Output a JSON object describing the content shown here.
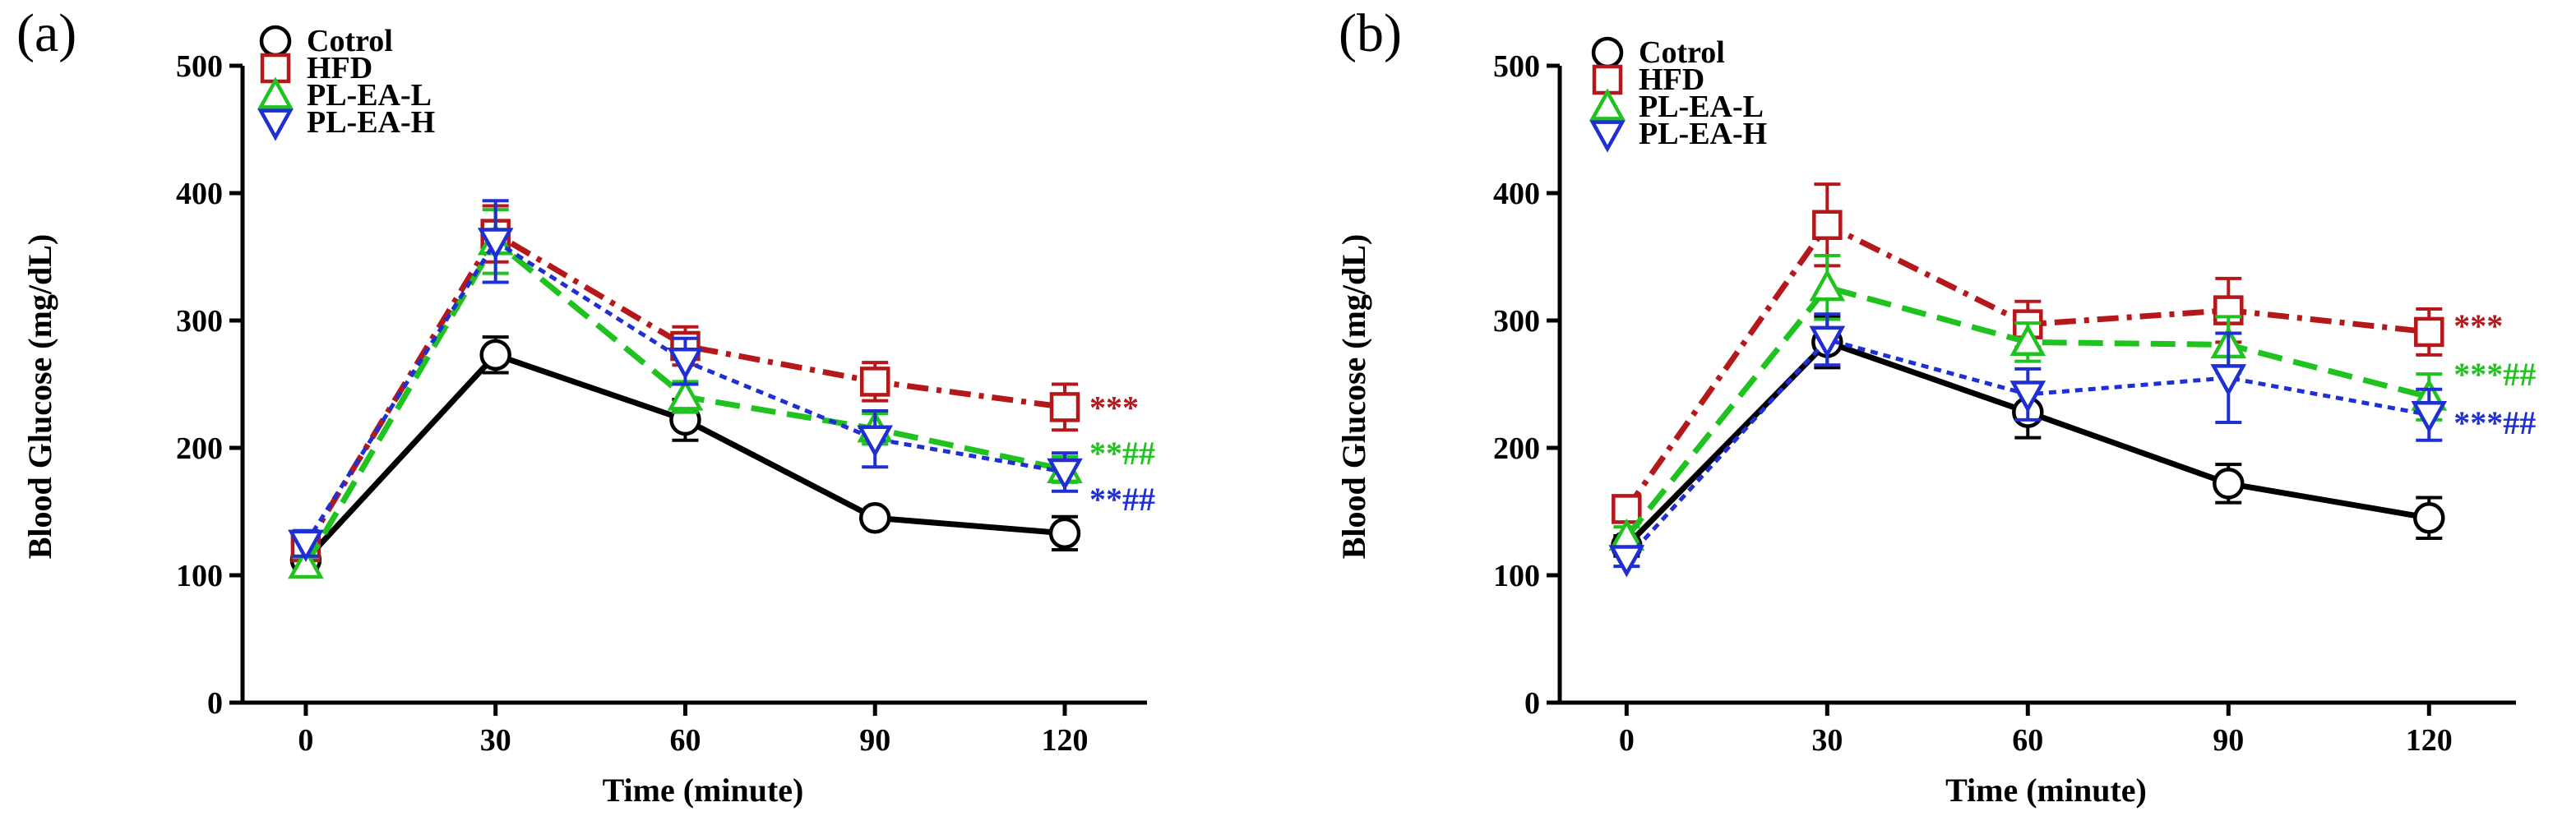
{
  "chart_data": [
    {
      "panel_label": "(a)",
      "type": "line",
      "xlabel": "Time (minute)",
      "ylabel": "Blood Glucose (mg/dL)",
      "ylim": [
        0,
        500
      ],
      "yticks": [
        "0",
        "100",
        "200",
        "300",
        "400",
        "500"
      ],
      "x": [
        0,
        30,
        60,
        90,
        120
      ],
      "xticks": [
        "0",
        "30",
        "60",
        "90",
        "120"
      ],
      "xlim": [
        -10,
        133
      ],
      "legend_position": "top-left",
      "series": [
        {
          "name": "Cotrol",
          "color": "#000000",
          "marker": "circle",
          "dash": "solid",
          "values": [
            112,
            273,
            222,
            145,
            133
          ],
          "errors": [
            8,
            14,
            16,
            0,
            13
          ]
        },
        {
          "name": "HFD",
          "color": "#b5181b",
          "marker": "square",
          "dash": "dashdot",
          "values": [
            122,
            368,
            280,
            252,
            232
          ],
          "errors": [
            10,
            22,
            15,
            15,
            18
          ]
        },
        {
          "name": "PL-EA-L",
          "color": "#1fc21f",
          "marker": "triangle-up",
          "dash": "dashed",
          "values": [
            108,
            362,
            240,
            215,
            183
          ],
          "errors": [
            6,
            25,
            12,
            12,
            10
          ]
        },
        {
          "name": "PL-EA-H",
          "color": "#1f2fd1",
          "marker": "triangle-down",
          "dash": "dotted",
          "values": [
            125,
            362,
            268,
            207,
            181
          ],
          "errors": [
            10,
            32,
            18,
            22,
            15
          ]
        }
      ],
      "annotations": [
        {
          "parts": [
            {
              "text": "***",
              "color": "#b5181b"
            }
          ],
          "at_y": 232
        },
        {
          "parts": [
            {
              "text": "**",
              "color": "#1fc21f"
            },
            {
              "text": "##",
              "color": "#1fc21f"
            }
          ],
          "at_y": 196
        },
        {
          "parts": [
            {
              "text": "**",
              "color": "#1f2fd1"
            },
            {
              "text": "##",
              "color": "#1f2fd1"
            }
          ],
          "at_y": 160
        }
      ]
    },
    {
      "panel_label": "(b)",
      "type": "line",
      "xlabel": "Time (minute)",
      "ylabel": "Blood Glucose (mg/dL)",
      "ylim": [
        0,
        500
      ],
      "yticks": [
        "0",
        "100",
        "200",
        "300",
        "400",
        "500"
      ],
      "x": [
        0,
        30,
        60,
        90,
        120
      ],
      "xticks": [
        "0",
        "30",
        "60",
        "90",
        "120"
      ],
      "xlim": [
        -10,
        133
      ],
      "legend_position": "top-left",
      "series": [
        {
          "name": "Cotrol",
          "color": "#000000",
          "marker": "circle",
          "dash": "solid",
          "values": [
            123,
            283,
            228,
            172,
            145
          ],
          "errors": [
            8,
            20,
            20,
            15,
            16
          ]
        },
        {
          "name": "HFD",
          "color": "#b5181b",
          "marker": "square",
          "dash": "dashdot",
          "values": [
            152,
            375,
            297,
            308,
            291
          ],
          "errors": [
            8,
            32,
            18,
            25,
            18
          ]
        },
        {
          "name": "PL-EA-L",
          "color": "#1fc21f",
          "marker": "triangle-up",
          "dash": "dashed",
          "values": [
            130,
            326,
            283,
            281,
            240
          ],
          "errors": [
            8,
            25,
            15,
            22,
            18
          ]
        },
        {
          "name": "PL-EA-H",
          "color": "#1f2fd1",
          "marker": "triangle-down",
          "dash": "dotted",
          "values": [
            113,
            285,
            242,
            255,
            226
          ],
          "errors": [
            6,
            20,
            20,
            35,
            20
          ]
        }
      ],
      "annotations": [
        {
          "parts": [
            {
              "text": "***",
              "color": "#b5181b"
            }
          ],
          "at_y": 296
        },
        {
          "parts": [
            {
              "text": "***",
              "color": "#1fc21f"
            },
            {
              "text": "##",
              "color": "#1fc21f"
            }
          ],
          "at_y": 258
        },
        {
          "parts": [
            {
              "text": "***",
              "color": "#1f2fd1"
            },
            {
              "text": "##",
              "color": "#1f2fd1"
            }
          ],
          "at_y": 220
        }
      ]
    }
  ]
}
